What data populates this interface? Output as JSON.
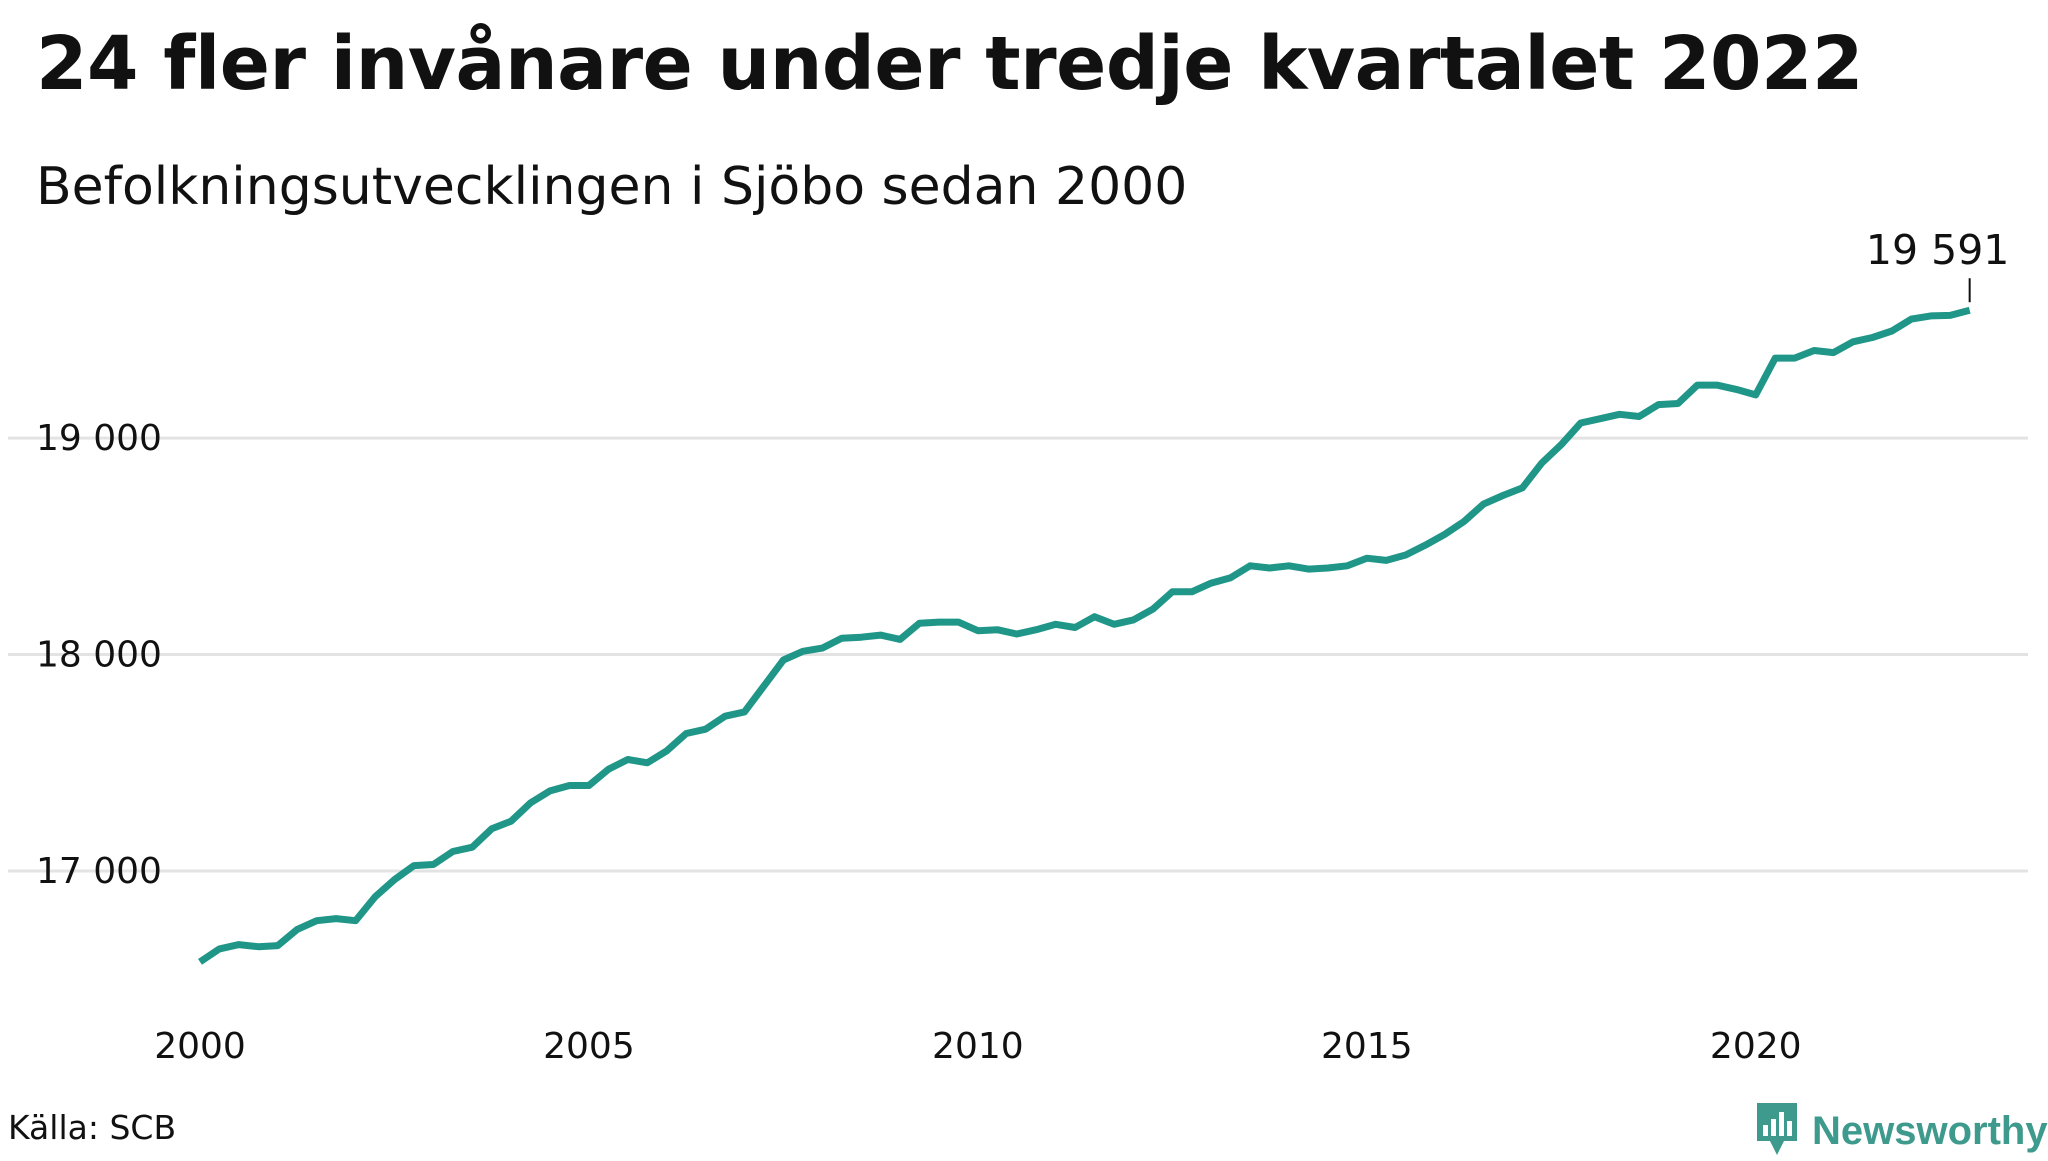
{
  "title": "24 fler invånare under tredje kvartalet 2022",
  "subtitle": "Befolkningsutvecklingen i Sjöbo sedan 2000",
  "source": "Källa: SCB",
  "brand": {
    "name": "Newsworthy",
    "icon": "newsworthy-logo-icon",
    "color": "#3e9a8c"
  },
  "colors": {
    "line": "#1f9688",
    "grid": "#e3e3e3",
    "text": "#111111"
  },
  "chart_data": {
    "type": "line",
    "title": "24 fler invånare under tredje kvartalet 2022",
    "subtitle": "Befolkningsutvecklingen i Sjöbo sedan 2000",
    "xlabel": "",
    "ylabel": "",
    "xlim": [
      2000,
      2023.5
    ],
    "ylim": [
      16450,
      19800
    ],
    "grid": true,
    "x_ticks": [
      2000,
      2005,
      2010,
      2015,
      2020
    ],
    "x_tick_labels": [
      "2000",
      "2005",
      "2010",
      "2015",
      "2020"
    ],
    "y_ticks": [
      17000,
      18000,
      19000
    ],
    "y_tick_labels": [
      "17 000",
      "18 000",
      "19 000"
    ],
    "annotation": {
      "x": 2022.75,
      "y": 19591,
      "label": "19 591"
    },
    "series": [
      {
        "x": [
          2000.0,
          2000.25,
          2000.5,
          2000.75,
          2001.0,
          2001.25,
          2001.5,
          2001.75,
          2002.0,
          2002.25,
          2002.5,
          2002.75,
          2003.0,
          2003.25,
          2003.5,
          2003.75,
          2004.0,
          2004.25,
          2004.5,
          2004.75,
          2005.0,
          2005.25,
          2005.5,
          2005.75,
          2006.0,
          2006.25,
          2006.5,
          2006.75,
          2007.0,
          2007.25,
          2007.5,
          2007.75,
          2008.0,
          2008.25,
          2008.5,
          2008.75,
          2009.0,
          2009.25,
          2009.5,
          2009.75,
          2010.0,
          2010.25,
          2010.5,
          2010.75,
          2011.0,
          2011.25,
          2011.5,
          2011.75,
          2012.0,
          2012.25,
          2012.5,
          2012.75,
          2013.0,
          2013.25,
          2013.5,
          2013.75,
          2014.0,
          2014.25,
          2014.5,
          2014.75,
          2015.0,
          2015.25,
          2015.5,
          2015.75,
          2016.0,
          2016.25,
          2016.5,
          2016.75,
          2017.0,
          2017.25,
          2017.5,
          2017.75,
          2018.0,
          2018.25,
          2018.5,
          2018.75,
          2019.0,
          2019.25,
          2019.5,
          2019.75,
          2020.0,
          2020.25,
          2020.5,
          2020.75,
          2021.0,
          2021.25,
          2021.5,
          2021.75,
          2022.0,
          2022.25,
          2022.5,
          2022.75
        ],
        "values": [
          16580,
          16640,
          16660,
          16650,
          16655,
          16730,
          16770,
          16780,
          16770,
          16880,
          16960,
          17025,
          17030,
          17090,
          17110,
          17195,
          17230,
          17315,
          17370,
          17395,
          17395,
          17470,
          17515,
          17500,
          17555,
          17635,
          17655,
          17715,
          17735,
          17855,
          17975,
          18015,
          18030,
          18075,
          18080,
          18090,
          18070,
          18145,
          18150,
          18150,
          18110,
          18115,
          18095,
          18115,
          18140,
          18125,
          18175,
          18140,
          18160,
          18210,
          18290,
          18290,
          18330,
          18355,
          18410,
          18400,
          18410,
          18395,
          18400,
          18410,
          18445,
          18435,
          18460,
          18505,
          18555,
          18615,
          18695,
          18735,
          18770,
          18885,
          18970,
          19070,
          19090,
          19110,
          19100,
          19155,
          19160,
          19245,
          19245,
          19225,
          19200,
          19370,
          19370,
          19405,
          19395,
          19445,
          19465,
          19495,
          19550,
          19565,
          19567,
          19591
        ]
      }
    ]
  }
}
